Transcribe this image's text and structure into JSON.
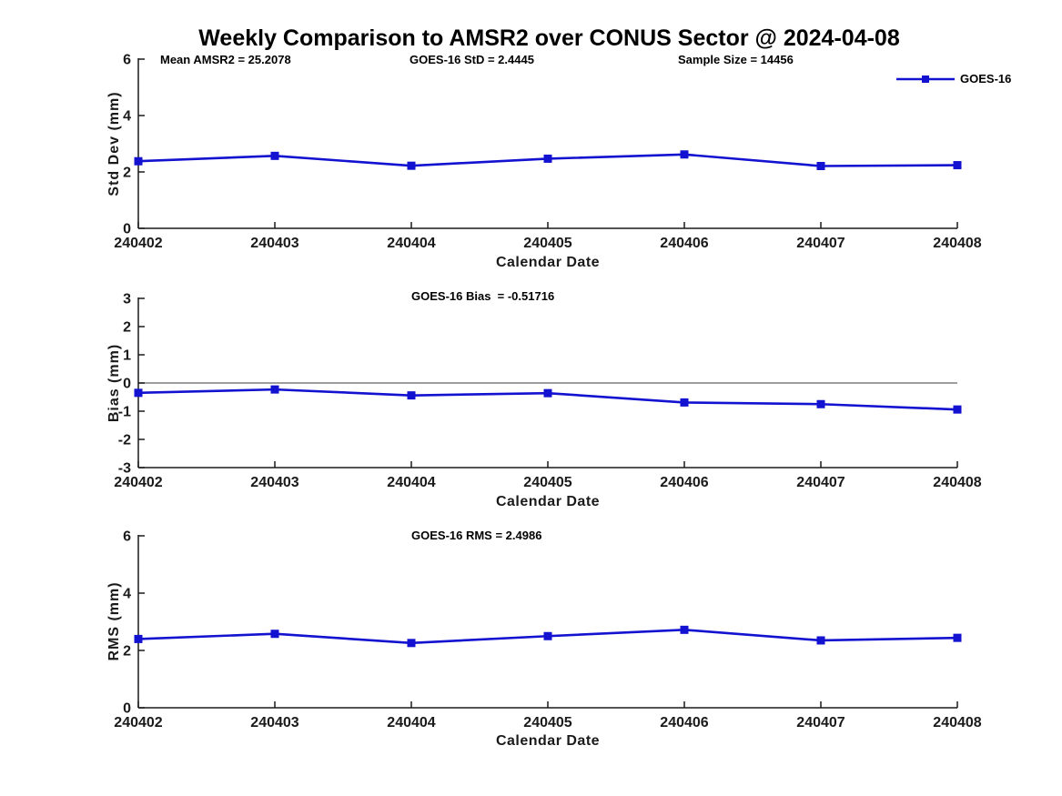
{
  "title": "Weekly Comparison to AMSR2 over CONUS Sector @ 2024-04-08",
  "legend": {
    "label": "GOES-16"
  },
  "colors": {
    "line": "#1212d0",
    "axis": "#1a1a1a",
    "zero_line": "#7d7d7d",
    "background": "#ffffff"
  },
  "x_axis": {
    "label": "Calendar Date",
    "categories": [
      "240402",
      "240403",
      "240404",
      "240405",
      "240406",
      "240407",
      "240408"
    ]
  },
  "chart_data": [
    {
      "type": "line",
      "name": "std-dev",
      "ylabel": "Std Dev (mm)",
      "xlabel": "Calendar Date",
      "ylim": [
        0,
        6
      ],
      "yticks": [
        0,
        2,
        4,
        6
      ],
      "grid": false,
      "zero_line": false,
      "legend_position": "top-right",
      "categories": [
        "240402",
        "240403",
        "240404",
        "240405",
        "240406",
        "240407",
        "240408"
      ],
      "series": [
        {
          "name": "GOES-16",
          "values": [
            2.38,
            2.57,
            2.22,
            2.47,
            2.62,
            2.21,
            2.24
          ]
        }
      ],
      "annotations": [
        "Mean AMSR2 = 25.2078",
        "GOES-16 StD = 2.4445",
        "Sample Size = 14456"
      ]
    },
    {
      "type": "line",
      "name": "bias",
      "ylabel": "Bias (mm)",
      "xlabel": "Calendar Date",
      "ylim": [
        -3,
        3
      ],
      "yticks": [
        -3,
        -2,
        -1,
        0,
        1,
        2,
        3
      ],
      "grid": false,
      "zero_line": true,
      "categories": [
        "240402",
        "240403",
        "240404",
        "240405",
        "240406",
        "240407",
        "240408"
      ],
      "series": [
        {
          "name": "GOES-16",
          "values": [
            -0.35,
            -0.23,
            -0.44,
            -0.36,
            -0.69,
            -0.75,
            -0.94
          ]
        }
      ],
      "annotations": [
        "GOES-16 Bias  = -0.51716"
      ]
    },
    {
      "type": "line",
      "name": "rms",
      "ylabel": "RMS (mm)",
      "xlabel": "Calendar Date",
      "ylim": [
        0,
        6
      ],
      "yticks": [
        0,
        2,
        4,
        6
      ],
      "grid": false,
      "zero_line": false,
      "categories": [
        "240402",
        "240403",
        "240404",
        "240405",
        "240406",
        "240407",
        "240408"
      ],
      "series": [
        {
          "name": "GOES-16",
          "values": [
            2.4,
            2.58,
            2.26,
            2.5,
            2.72,
            2.35,
            2.44
          ]
        }
      ],
      "annotations": [
        "GOES-16 RMS = 2.4986"
      ]
    }
  ]
}
